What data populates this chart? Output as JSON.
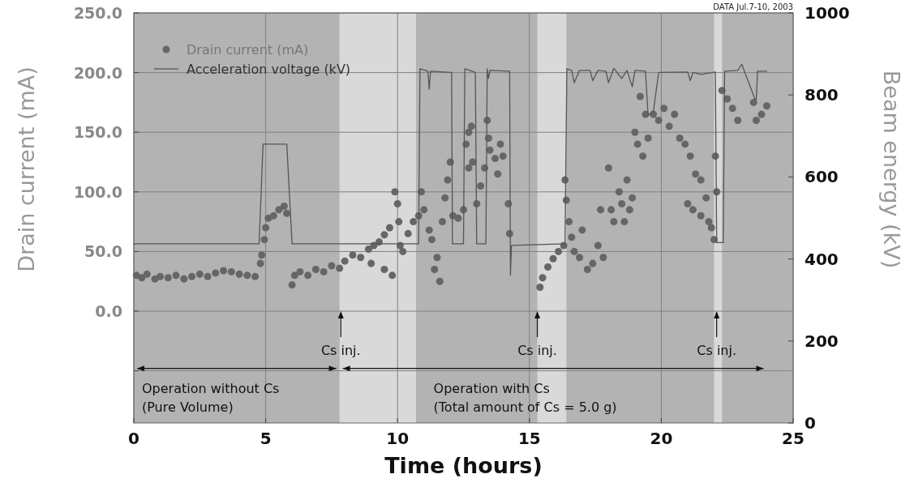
{
  "chart_data": {
    "type": "scatter",
    "xlabel": "Time (hours)",
    "ylabel": "Drain current (mA)",
    "y2label": "Beam energy (kV)",
    "xlim": [
      0,
      25
    ],
    "xticks": [
      0,
      5,
      10,
      15,
      20,
      25
    ],
    "ylim": [
      -93.75,
      250
    ],
    "yticks": [
      {
        "value": -50,
        "label": null
      },
      {
        "value": 0,
        "label": "0.0"
      },
      {
        "value": 50,
        "label": "50.0"
      },
      {
        "value": 100,
        "label": "100.0"
      },
      {
        "value": 150,
        "label": "150.0"
      },
      {
        "value": 200,
        "label": "200.0"
      },
      {
        "value": 250,
        "label": "250.0"
      }
    ],
    "y2lim": [
      0,
      1000
    ],
    "y2ticks": [
      0,
      200,
      400,
      600,
      800,
      1000
    ],
    "grid": true,
    "legend": "top left",
    "bands": [
      {
        "axis": "x",
        "from": 7.8,
        "to": 10.7,
        "color": "#d9d9d9"
      },
      {
        "axis": "x",
        "from": 15.3,
        "to": 16.4,
        "color": "#d9d9d9"
      },
      {
        "axis": "x",
        "from": 22.0,
        "to": 22.3,
        "color": "#d9d9d9"
      }
    ],
    "annotations": [
      "DATA Jul.7-10, 2003",
      {
        "text": "Cs inj.",
        "x": 7.85,
        "y": 0
      },
      {
        "text": "Cs inj.",
        "x": 15.3,
        "y": 0
      },
      {
        "text": "Cs inj.",
        "x": 22.1,
        "y": 0
      },
      {
        "text": "Operation without Cs\n(Pure Volume)",
        "x": 7.8,
        "y": -48
      },
      "Operation with Cs\n(Total amount of Cs = 5.0 g)"
    ],
    "series": [
      {
        "name": "Drain current (mA)",
        "marker": "circle",
        "color": "#666666",
        "x": [
          0.1,
          0.3,
          0.5,
          0.8,
          1.0,
          1.3,
          1.6,
          1.9,
          2.2,
          2.5,
          2.8,
          3.1,
          3.4,
          3.7,
          4.0,
          4.3,
          4.6,
          4.8,
          4.85,
          4.95,
          5.0,
          5.1,
          5.3,
          5.5,
          5.7,
          5.8,
          6.0,
          6.1,
          6.3,
          6.6,
          6.9,
          7.2,
          7.5,
          7.8,
          8.0,
          8.3,
          8.6,
          8.9,
          9.1,
          9.3,
          9.5,
          9.7,
          9.8,
          9.5,
          9.0,
          9.9,
          10.0,
          10.05,
          10.1,
          10.2,
          10.4,
          10.6,
          10.8,
          10.9,
          11.0,
          11.2,
          11.3,
          11.5,
          11.6,
          11.4,
          11.7,
          11.8,
          11.9,
          12.0,
          12.1,
          12.3,
          12.5,
          12.6,
          12.7,
          12.8,
          12.7,
          12.85,
          13.0,
          13.15,
          13.3,
          13.4,
          13.45,
          13.5,
          13.7,
          13.8,
          13.9,
          14.0,
          14.2,
          14.25,
          15.4,
          15.5,
          15.7,
          15.9,
          16.1,
          16.3,
          16.35,
          16.4,
          16.5,
          16.6,
          16.7,
          16.9,
          17.0,
          17.2,
          17.4,
          17.6,
          17.7,
          17.8,
          18.0,
          18.1,
          18.2,
          18.4,
          18.5,
          18.6,
          18.8,
          18.9,
          18.7,
          19.0,
          19.1,
          19.2,
          19.4,
          19.5,
          19.3,
          19.7,
          19.9,
          20.1,
          20.3,
          20.5,
          20.7,
          20.9,
          21.1,
          21.3,
          21.5,
          21.0,
          21.2,
          21.5,
          21.7,
          21.8,
          21.9,
          22.0,
          22.05,
          22.1,
          22.3,
          22.5,
          22.7,
          22.9,
          23.5,
          23.6,
          23.8,
          24.0
        ],
        "values": [
          30,
          28,
          31,
          27,
          29,
          28,
          30,
          27,
          29,
          31,
          29,
          32,
          34,
          33,
          31,
          30,
          29,
          40,
          47,
          60,
          70,
          78,
          80,
          85,
          88,
          82,
          22,
          30,
          33,
          30,
          35,
          33,
          38,
          36,
          42,
          47,
          45,
          52,
          55,
          58,
          64,
          70,
          30,
          35,
          40,
          100,
          90,
          75,
          55,
          50,
          65,
          75,
          80,
          100,
          85,
          68,
          60,
          45,
          25,
          35,
          75,
          95,
          110,
          125,
          80,
          78,
          85,
          140,
          150,
          155,
          120,
          125,
          90,
          105,
          120,
          160,
          145,
          135,
          128,
          115,
          140,
          130,
          90,
          65,
          20,
          28,
          37,
          44,
          50,
          55,
          110,
          93,
          75,
          62,
          50,
          45,
          68,
          35,
          40,
          55,
          85,
          45,
          120,
          85,
          75,
          100,
          90,
          75,
          85,
          95,
          110,
          150,
          140,
          180,
          165,
          145,
          130,
          165,
          160,
          170,
          155,
          165,
          145,
          140,
          130,
          115,
          110,
          90,
          85,
          80,
          95,
          75,
          70,
          60,
          130,
          100,
          185,
          178,
          170,
          160,
          175,
          160,
          165,
          172
        ]
      },
      {
        "name": "Acceleration voltage (kV)",
        "type": "line",
        "axis": "y2",
        "marker": "none",
        "line_style": "solid",
        "color": "#555555",
        "x": [
          0,
          4.75,
          4.9,
          5.8,
          6.0,
          10.8,
          10.85,
          11.15,
          11.2,
          11.25,
          12.05,
          12.08,
          12.5,
          12.55,
          12.95,
          13.0,
          13.35,
          13.4,
          13.45,
          13.5,
          14.25,
          14.28,
          14.32,
          16.35,
          16.42,
          16.6,
          16.7,
          16.9,
          17.3,
          17.4,
          17.6,
          17.9,
          18.0,
          18.2,
          18.5,
          18.7,
          18.9,
          19.0,
          19.4,
          19.5,
          19.7,
          19.9,
          21.0,
          21.1,
          21.2,
          21.5,
          22.05,
          22.1,
          22.35,
          22.4,
          22.9,
          23.05,
          23.55,
          23.6,
          23.65,
          24.0
        ],
        "values": [
          437,
          437,
          680,
          680,
          437,
          437,
          864,
          858,
          814,
          858,
          855,
          437,
          437,
          864,
          855,
          437,
          437,
          864,
          840,
          860,
          858,
          360,
          433,
          437,
          864,
          860,
          830,
          860,
          860,
          835,
          860,
          858,
          830,
          865,
          840,
          860,
          820,
          860,
          858,
          750,
          760,
          855,
          856,
          835,
          855,
          850,
          856,
          440,
          440,
          858,
          860,
          875,
          790,
          790,
          858,
          858
        ]
      }
    ]
  }
}
